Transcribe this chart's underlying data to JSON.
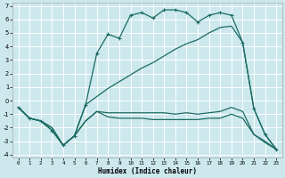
{
  "xlabel": "Humidex (Indice chaleur)",
  "bg_color": "#cce8ec",
  "grid_color": "#ffffff",
  "line_color": "#1a6b62",
  "xlim": [
    -0.5,
    23.5
  ],
  "ylim": [
    -4.2,
    7.2
  ],
  "xticks": [
    0,
    1,
    2,
    3,
    4,
    5,
    6,
    7,
    8,
    9,
    10,
    11,
    12,
    13,
    14,
    15,
    16,
    17,
    18,
    19,
    20,
    21,
    22,
    23
  ],
  "yticks": [
    -4,
    -3,
    -2,
    -1,
    0,
    1,
    2,
    3,
    4,
    5,
    6,
    7
  ],
  "series_top_x": [
    0,
    1,
    2,
    3,
    4,
    5,
    6,
    7,
    8,
    9,
    10,
    11,
    12,
    13,
    14,
    15,
    16,
    17,
    18,
    19,
    20,
    21,
    22,
    23
  ],
  "series_top_y": [
    -0.5,
    -1.3,
    -1.5,
    -2.2,
    -3.3,
    -2.6,
    -0.3,
    3.5,
    4.9,
    4.6,
    6.3,
    6.5,
    6.1,
    6.7,
    6.7,
    6.5,
    5.8,
    6.3,
    6.5,
    6.3,
    4.3,
    -0.6,
    -2.5,
    -3.6
  ],
  "series_diag_x": [
    0,
    1,
    2,
    3,
    4,
    5,
    6,
    7,
    8,
    9,
    10,
    11,
    12,
    13,
    14,
    15,
    16,
    17,
    18,
    19,
    20,
    21,
    22,
    23
  ],
  "series_diag_y": [
    -0.5,
    -1.3,
    -1.5,
    -2.2,
    -3.3,
    -2.6,
    -0.3,
    0.3,
    0.9,
    1.4,
    1.9,
    2.4,
    2.8,
    3.3,
    3.8,
    4.2,
    4.5,
    5.0,
    5.4,
    5.5,
    4.3,
    -0.6,
    -2.5,
    -3.6
  ],
  "series_mid_x": [
    0,
    1,
    2,
    3,
    4,
    5,
    6,
    7,
    8,
    9,
    10,
    11,
    12,
    13,
    14,
    15,
    16,
    17,
    18,
    19,
    20,
    21,
    22,
    23
  ],
  "series_mid_y": [
    -0.5,
    -1.3,
    -1.5,
    -2.0,
    -3.3,
    -2.6,
    -1.5,
    -0.8,
    -0.9,
    -0.9,
    -0.9,
    -0.9,
    -0.9,
    -0.9,
    -1.0,
    -0.9,
    -1.0,
    -0.9,
    -0.8,
    -0.5,
    -0.8,
    -2.5,
    -3.0,
    -3.6
  ],
  "series_bot_x": [
    0,
    1,
    2,
    3,
    4,
    5,
    6,
    7,
    8,
    9,
    10,
    11,
    12,
    13,
    14,
    15,
    16,
    17,
    18,
    19,
    20,
    21,
    22,
    23
  ],
  "series_bot_y": [
    -0.5,
    -1.3,
    -1.5,
    -2.0,
    -3.3,
    -2.6,
    -1.5,
    -0.8,
    -1.2,
    -1.3,
    -1.3,
    -1.3,
    -1.4,
    -1.4,
    -1.4,
    -1.4,
    -1.4,
    -1.3,
    -1.3,
    -1.0,
    -1.3,
    -2.5,
    -3.1,
    -3.6
  ]
}
